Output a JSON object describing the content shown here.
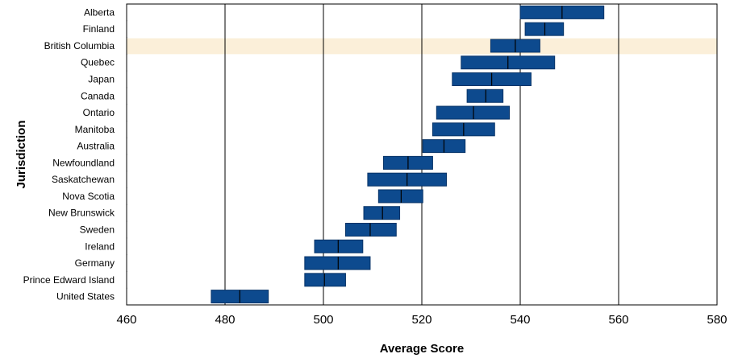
{
  "chart_data": {
    "type": "bar",
    "subtype": "range-with-marker",
    "xlabel": "Average Score",
    "ylabel": "Jurisdiction",
    "xlim": [
      460,
      580
    ],
    "xticks": [
      460,
      480,
      500,
      520,
      540,
      560,
      580
    ],
    "grid": "vertical",
    "highlight_category": "British Columbia",
    "colors": {
      "bar_fill": "#0d4a8e",
      "bar_stroke": "#083468",
      "marker": "#000000",
      "highlight_band": "#fbefd9",
      "gridline": "#000000",
      "separator": "#cccccc"
    },
    "series": [
      {
        "category": "Alberta",
        "low": 540.0,
        "mean": 548.5,
        "high": 557.0
      },
      {
        "category": "Finland",
        "low": 541.0,
        "mean": 545.0,
        "high": 548.8
      },
      {
        "category": "British Columbia",
        "low": 534.0,
        "mean": 539.0,
        "high": 544.0
      },
      {
        "category": "Quebec",
        "low": 528.0,
        "mean": 537.5,
        "high": 547.0
      },
      {
        "category": "Japan",
        "low": 526.2,
        "mean": 534.2,
        "high": 542.2
      },
      {
        "category": "Canada",
        "low": 529.2,
        "mean": 533.0,
        "high": 536.5
      },
      {
        "category": "Ontario",
        "low": 523.0,
        "mean": 530.5,
        "high": 537.8
      },
      {
        "category": "Manitoba",
        "low": 522.2,
        "mean": 528.5,
        "high": 534.8
      },
      {
        "category": "Australia",
        "low": 520.2,
        "mean": 524.5,
        "high": 528.8
      },
      {
        "category": "Newfoundland",
        "low": 512.2,
        "mean": 517.2,
        "high": 522.2
      },
      {
        "category": "Saskatchewan",
        "low": 509.0,
        "mean": 517.0,
        "high": 525.0
      },
      {
        "category": "Nova Scotia",
        "low": 511.2,
        "mean": 515.8,
        "high": 520.2
      },
      {
        "category": "New Brunswick",
        "low": 508.2,
        "mean": 512.0,
        "high": 515.5
      },
      {
        "category": "Sweden",
        "low": 504.5,
        "mean": 509.5,
        "high": 514.8
      },
      {
        "category": "Ireland",
        "low": 498.2,
        "mean": 503.0,
        "high": 508.0
      },
      {
        "category": "Germany",
        "low": 496.2,
        "mean": 503.0,
        "high": 509.5
      },
      {
        "category": "Prince Edward Island",
        "low": 496.2,
        "mean": 500.2,
        "high": 504.5
      },
      {
        "category": "United States",
        "low": 477.2,
        "mean": 483.0,
        "high": 488.8
      }
    ]
  }
}
